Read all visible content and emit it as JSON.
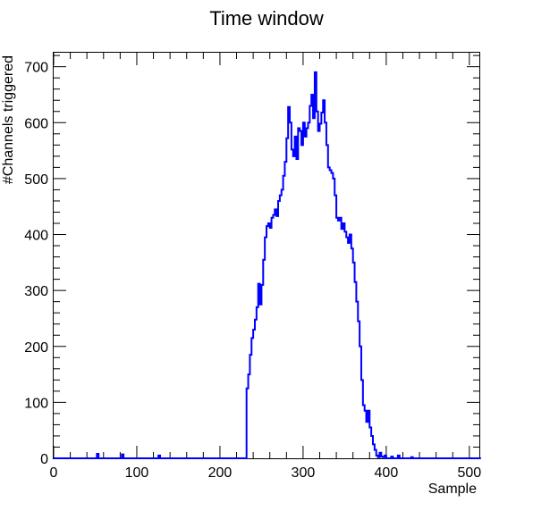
{
  "chart_data": {
    "type": "line",
    "style": "histogram-step",
    "title": "Time window",
    "xlabel": "Sample",
    "ylabel": "#Channels triggered",
    "xlim": [
      0,
      512
    ],
    "ylim": [
      0,
      725
    ],
    "x_ticks": [
      0,
      100,
      200,
      300,
      400,
      500
    ],
    "y_ticks": [
      0,
      100,
      200,
      300,
      400,
      500,
      600,
      700
    ],
    "grid": false,
    "legend": "none",
    "line_color": "#0000ff",
    "series": [
      {
        "bin_width": 2,
        "x_start": 0,
        "values": [
          0,
          0,
          0,
          0,
          0,
          0,
          0,
          0,
          0,
          0,
          0,
          0,
          0,
          0,
          0,
          0,
          0,
          0,
          0,
          0,
          0,
          0,
          0,
          0,
          0,
          0,
          8,
          0,
          0,
          0,
          0,
          0,
          0,
          0,
          0,
          0,
          0,
          0,
          0,
          0,
          0,
          7,
          0,
          0,
          0,
          0,
          0,
          0,
          0,
          0,
          0,
          0,
          0,
          0,
          0,
          0,
          0,
          0,
          0,
          0,
          0,
          0,
          0,
          5,
          0,
          0,
          0,
          0,
          0,
          0,
          0,
          0,
          0,
          0,
          0,
          0,
          0,
          0,
          0,
          0,
          0,
          0,
          0,
          0,
          0,
          0,
          0,
          0,
          0,
          0,
          0,
          0,
          0,
          0,
          0,
          0,
          0,
          0,
          0,
          0,
          0,
          0,
          0,
          0,
          0,
          0,
          0,
          0,
          0,
          0,
          0,
          0,
          0,
          0,
          0,
          0,
          125,
          150,
          185,
          215,
          230,
          248,
          270,
          312,
          275,
          310,
          355,
          395,
          415,
          420,
          412,
          430,
          435,
          445,
          433,
          460,
          470,
          480,
          505,
          530,
          572,
          628,
          600,
          552,
          540,
          575,
          535,
          590,
          585,
          560,
          600,
          575,
          590,
          600,
          630,
          650,
          608,
          690,
          620,
          585,
          598,
          618,
          640,
          600,
          560,
          520,
          515,
          510,
          500,
          470,
          430,
          425,
          430,
          410,
          420,
          405,
          395,
          385,
          400,
          375,
          350,
          315,
          280,
          245,
          200,
          140,
          95,
          85,
          65,
          85,
          55,
          40,
          25,
          15,
          5,
          2,
          10,
          3,
          2,
          5,
          0,
          0,
          0,
          3,
          0,
          0,
          0,
          5,
          0,
          0,
          0,
          0,
          0,
          0,
          0,
          2,
          0,
          0,
          0,
          0,
          0,
          0,
          0,
          0,
          0,
          0,
          0,
          0,
          0,
          0,
          0,
          0,
          0,
          0,
          0,
          0,
          0,
          0,
          0,
          0,
          0,
          0,
          0,
          0,
          0,
          0,
          0,
          0,
          0,
          0,
          0,
          0,
          0,
          0,
          0,
          0,
          0
        ]
      }
    ]
  }
}
